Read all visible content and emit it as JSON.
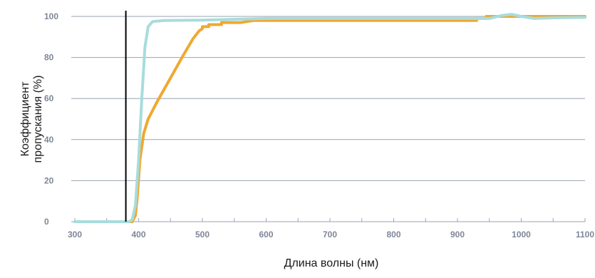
{
  "chart_data": {
    "type": "line",
    "title": "",
    "xlabel": "Длина волны (нм)",
    "ylabel_lines": [
      "Коэффициент",
      "пропускания (%)"
    ],
    "xlim": [
      300,
      1100
    ],
    "ylim": [
      0,
      100
    ],
    "x_ticks": [
      300,
      400,
      500,
      600,
      700,
      800,
      900,
      1000,
      1100
    ],
    "y_ticks": [
      0,
      20,
      40,
      60,
      80,
      100
    ],
    "grid": "horizontal",
    "legend": "none",
    "colors": {
      "grid": "#9aa3b0",
      "tick_text": "#7d8797",
      "marker": "#000000"
    },
    "vertical_marker": {
      "x": 380
    },
    "series": [
      {
        "color": "#f0a830",
        "points": [
          [
            300,
            0
          ],
          [
            380,
            0
          ],
          [
            390,
            0
          ],
          [
            395,
            3
          ],
          [
            398,
            12
          ],
          [
            402,
            30
          ],
          [
            408,
            43
          ],
          [
            415,
            50
          ],
          [
            430,
            59
          ],
          [
            450,
            70
          ],
          [
            470,
            81
          ],
          [
            485,
            89
          ],
          [
            495,
            93
          ],
          [
            500,
            94
          ],
          [
            500,
            95
          ],
          [
            510,
            95
          ],
          [
            510,
            96
          ],
          [
            530,
            96
          ],
          [
            530,
            97
          ],
          [
            560,
            97
          ],
          [
            580,
            98
          ],
          [
            930,
            98
          ],
          [
            930,
            99
          ],
          [
            945,
            99
          ],
          [
            945,
            100
          ],
          [
            1100,
            100
          ]
        ]
      },
      {
        "color": "#a8dcdc",
        "points": [
          [
            300,
            0
          ],
          [
            385,
            0
          ],
          [
            390,
            1
          ],
          [
            395,
            8
          ],
          [
            400,
            30
          ],
          [
            405,
            60
          ],
          [
            410,
            85
          ],
          [
            415,
            95
          ],
          [
            422,
            97.5
          ],
          [
            440,
            98
          ],
          [
            500,
            98.2
          ],
          [
            600,
            99
          ],
          [
            700,
            99
          ],
          [
            800,
            99
          ],
          [
            900,
            99
          ],
          [
            950,
            99
          ],
          [
            970,
            100.5
          ],
          [
            985,
            101
          ],
          [
            1000,
            100
          ],
          [
            1020,
            99
          ],
          [
            1050,
            99.3
          ],
          [
            1100,
            99.5
          ]
        ]
      }
    ]
  }
}
